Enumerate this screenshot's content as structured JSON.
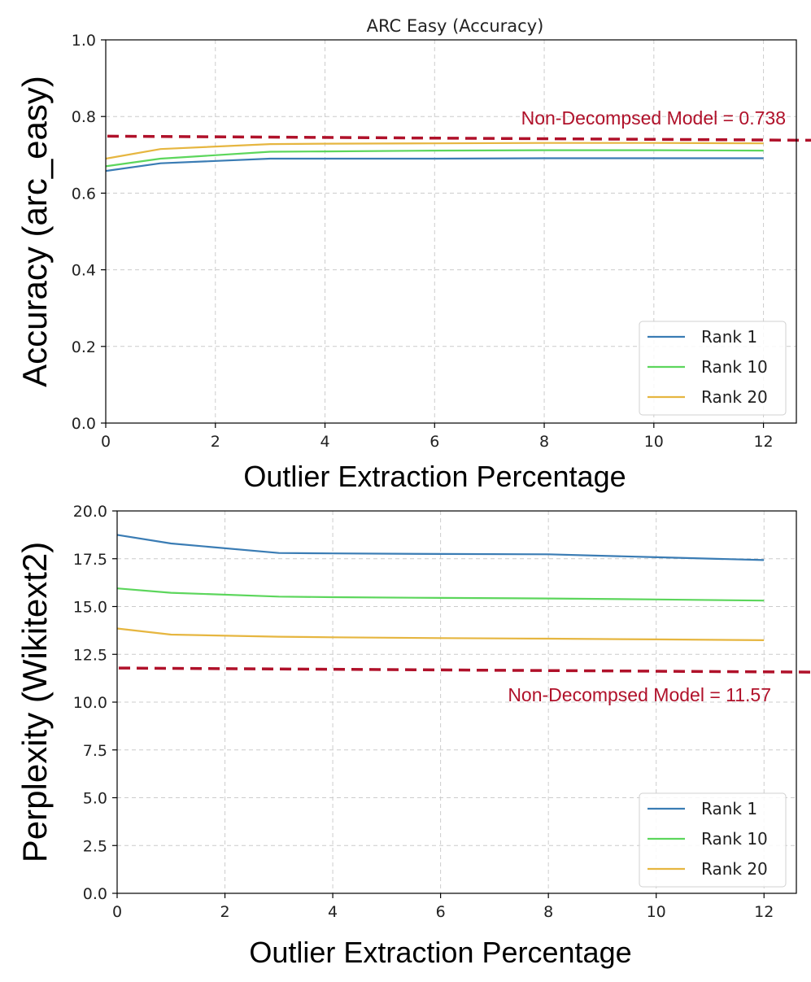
{
  "chart_data": [
    {
      "type": "line",
      "title": "ARC Easy (Accuracy)",
      "xlabel": "Outlier Extraction Percentage",
      "ylabel": "Accuracy (arc_easy)",
      "xlim": [
        0,
        12.6
      ],
      "ylim": [
        0.0,
        1.0
      ],
      "xticks": [
        0,
        2,
        4,
        6,
        8,
        10,
        12
      ],
      "yticks": [
        0.0,
        0.2,
        0.4,
        0.6,
        0.8,
        1.0
      ],
      "ytick_labels": [
        "0.0",
        "0.2",
        "0.4",
        "0.6",
        "0.8",
        "1.0"
      ],
      "grid": true,
      "legend_position": "bottom-right",
      "series": [
        {
          "name": "Rank 1",
          "color": "#3a7cb4",
          "x": [
            0,
            1,
            3,
            4,
            6,
            8,
            10,
            12
          ],
          "y": [
            0.658,
            0.678,
            0.69,
            0.69,
            0.69,
            0.691,
            0.691,
            0.691
          ]
        },
        {
          "name": "Rank 10",
          "color": "#5cd65c",
          "x": [
            0,
            1,
            3,
            4,
            6,
            8,
            10,
            12
          ],
          "y": [
            0.67,
            0.69,
            0.708,
            0.709,
            0.711,
            0.712,
            0.712,
            0.711
          ]
        },
        {
          "name": "Rank 20",
          "color": "#e6b640",
          "x": [
            0,
            1,
            3,
            4,
            6,
            8,
            10,
            12
          ],
          "y": [
            0.69,
            0.715,
            0.728,
            0.729,
            0.73,
            0.731,
            0.731,
            0.73
          ]
        }
      ],
      "reference_line": {
        "value": 0.738,
        "label": "Non-Decompsed Model = 0.738",
        "color": "#b0112a",
        "label_position": "above-right"
      }
    },
    {
      "type": "line",
      "title": "",
      "xlabel": "Outlier Extraction Percentage",
      "ylabel": "Perplexity (Wikitext2)",
      "xlim": [
        0,
        12.6
      ],
      "ylim": [
        0.0,
        20.0
      ],
      "xticks": [
        0,
        2,
        4,
        6,
        8,
        10,
        12
      ],
      "yticks": [
        0.0,
        2.5,
        5.0,
        7.5,
        10.0,
        12.5,
        15.0,
        17.5,
        20.0
      ],
      "ytick_labels": [
        "0.0",
        "2.5",
        "5.0",
        "7.5",
        "10.0",
        "12.5",
        "15.0",
        "17.5",
        "20.0"
      ],
      "grid": true,
      "legend_position": "bottom-right",
      "series": [
        {
          "name": "Rank 1",
          "color": "#3a7cb4",
          "x": [
            0,
            1,
            3,
            4,
            6,
            8,
            10,
            12
          ],
          "y": [
            18.75,
            18.3,
            17.8,
            17.78,
            17.75,
            17.73,
            17.58,
            17.43
          ]
        },
        {
          "name": "Rank 10",
          "color": "#5cd65c",
          "x": [
            0,
            1,
            3,
            4,
            6,
            8,
            10,
            12
          ],
          "y": [
            15.95,
            15.72,
            15.52,
            15.49,
            15.45,
            15.42,
            15.37,
            15.31
          ]
        },
        {
          "name": "Rank 20",
          "color": "#e6b640",
          "x": [
            0,
            1,
            3,
            4,
            6,
            8,
            10,
            12
          ],
          "y": [
            13.85,
            13.53,
            13.42,
            13.39,
            13.35,
            13.32,
            13.28,
            13.24
          ]
        }
      ],
      "reference_line": {
        "value": 11.57,
        "label": "Non-Decompsed Model = 11.57",
        "color": "#b0112a",
        "label_position": "below-right"
      }
    }
  ]
}
